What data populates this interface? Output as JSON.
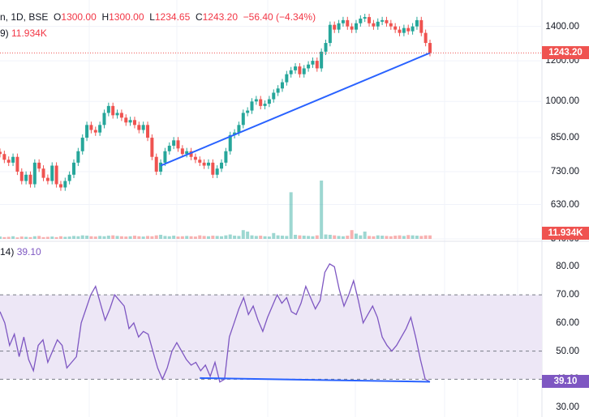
{
  "header": {
    "symbol_tail": "n, 1D, BSE",
    "o_label": "O",
    "o_value": "1300.00",
    "h_label": "H",
    "h_value": "1300.00",
    "l_label": "L",
    "l_value": "1234.65",
    "c_label": "C",
    "c_value": "1243.20",
    "change": "−56.40 (−4.34%)",
    "vol_prefix": "9)",
    "vol_value": "11.934K",
    "rsi_prefix": "14)",
    "rsi_value": "39.10"
  },
  "price_axis_ticks": [
    "1400.00",
    "1200.00",
    "1000.00",
    "850.00",
    "730.00",
    "630.00",
    "540.00"
  ],
  "rsi_axis_ticks": [
    "80.00",
    "70.00",
    "60.00",
    "50.00",
    "40.00",
    "30.00"
  ],
  "tags": {
    "last_price": "1243.20",
    "volume": "11.934K",
    "rsi": "39.10"
  },
  "colors": {
    "up": "#26a69a",
    "down": "#ef5350",
    "trendline": "#2962ff",
    "rsi_line": "#7e57c2",
    "rsi_band": "#ede7f6"
  },
  "chart_data": [
    {
      "type": "candlestick",
      "scale": "log",
      "ylim": [
        540,
        1520
      ],
      "last_close": 1243.2,
      "closes": [
        790,
        770,
        760,
        780,
        730,
        700,
        720,
        690,
        760,
        740,
        710,
        700,
        750,
        690,
        680,
        700,
        720,
        760,
        800,
        850,
        900,
        880,
        870,
        900,
        950,
        980,
        940,
        950,
        930,
        910,
        920,
        900,
        880,
        900,
        850,
        780,
        730,
        760,
        800,
        820,
        840,
        810,
        790,
        800,
        780,
        770,
        760,
        750,
        760,
        720,
        740,
        760,
        800,
        860,
        870,
        900,
        950,
        960,
        1000,
        1010,
        980,
        990,
        1010,
        1040,
        1060,
        1090,
        1130,
        1150,
        1170,
        1130,
        1160,
        1180,
        1200,
        1160,
        1250,
        1300,
        1410,
        1380,
        1420,
        1440,
        1400,
        1380,
        1420,
        1450,
        1460,
        1420,
        1400,
        1430,
        1440,
        1420,
        1400,
        1380,
        1360,
        1390,
        1370,
        1400,
        1440,
        1360,
        1300,
        1243.2
      ],
      "volume": {
        "ylim": [
          0,
          200
        ],
        "values": [
          8,
          6,
          7,
          9,
          5,
          8,
          7,
          6,
          9,
          10,
          6,
          7,
          8,
          6,
          9,
          7,
          8,
          10,
          9,
          12,
          11,
          9,
          8,
          10,
          9,
          11,
          12,
          10,
          9,
          8,
          9,
          11,
          9,
          8,
          10,
          9,
          12,
          14,
          10,
          9,
          11,
          8,
          9,
          10,
          9,
          8,
          12,
          10,
          9,
          11,
          10,
          9,
          12,
          15,
          11,
          10,
          30,
          25,
          12,
          10,
          11,
          9,
          8,
          20,
          12,
          11,
          10,
          160,
          14,
          12,
          11,
          10,
          9,
          12,
          200,
          15,
          14,
          12,
          10,
          9,
          11,
          30,
          18,
          12,
          25,
          10,
          9,
          12,
          11,
          10,
          9,
          11,
          12,
          10,
          13,
          12,
          11,
          10,
          12,
          11.934
        ]
      },
      "trendline": {
        "from": [
          37,
          750
        ],
        "to": [
          99,
          1243.2
        ]
      }
    },
    {
      "type": "line",
      "name": "RSI",
      "ylim": [
        28,
        85
      ],
      "bands": [
        40,
        70
      ],
      "midline": 50,
      "values": [
        64,
        60,
        52,
        56,
        48,
        55,
        47,
        43,
        52,
        54,
        46,
        50,
        54,
        52,
        44,
        46,
        48,
        60,
        65,
        70,
        73,
        67,
        61,
        65,
        70,
        68,
        66,
        58,
        60,
        55,
        57,
        56,
        50,
        44,
        40,
        44,
        50,
        53,
        50,
        47,
        45,
        46,
        43,
        45,
        41,
        46,
        39,
        40,
        55,
        60,
        65,
        69,
        63,
        66,
        61,
        57,
        62,
        66,
        70,
        67,
        69,
        64,
        63,
        67,
        73,
        69,
        65,
        68,
        78,
        81,
        80,
        72,
        66,
        70,
        75,
        68,
        60,
        63,
        66,
        62,
        55,
        52,
        50,
        52,
        55,
        58,
        62,
        55,
        47,
        40,
        39.1
      ],
      "last": 39.1,
      "trendline": {
        "from": [
          46,
          40.4
        ],
        "to": [
          99,
          39.1
        ]
      }
    }
  ]
}
